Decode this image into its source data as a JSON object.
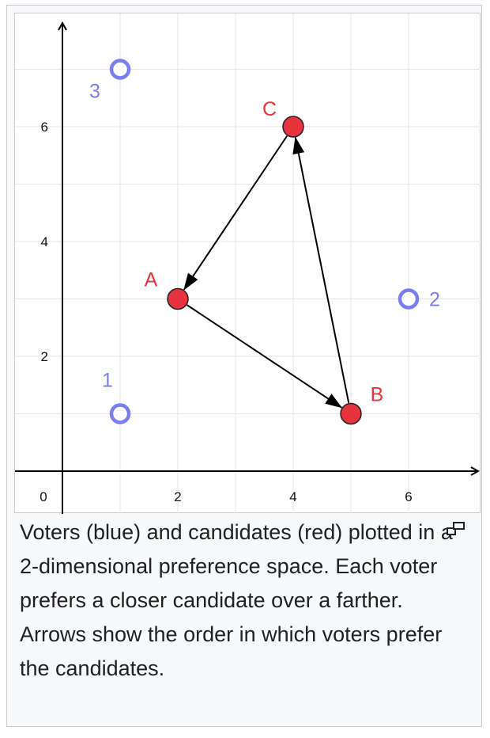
{
  "chart_data": {
    "type": "scatter",
    "title": "",
    "xlabel": "",
    "ylabel": "",
    "xlim": [
      -0.5,
      7.3
    ],
    "ylim": [
      -0.7,
      7.9
    ],
    "grid": true,
    "x_ticks": [
      0,
      2,
      4,
      6
    ],
    "y_ticks": [
      2,
      4,
      6
    ],
    "origin_label": "0",
    "voter_color": "#7a7ef2",
    "candidate_color": "#e8333e",
    "candidate_label_color": "#e8333e",
    "voter_label_color": "#7a7ef2",
    "voters": [
      {
        "label": "1",
        "x": 1,
        "y": 1,
        "label_position": "above"
      },
      {
        "label": "2",
        "x": 6,
        "y": 3,
        "label_position": "right"
      },
      {
        "label": "3",
        "x": 1,
        "y": 7,
        "label_position": "left"
      }
    ],
    "candidates": [
      {
        "label": "A",
        "x": 2,
        "y": 3,
        "label_position": "top-left"
      },
      {
        "label": "B",
        "x": 5,
        "y": 1,
        "label_position": "top-right"
      },
      {
        "label": "C",
        "x": 4,
        "y": 6,
        "label_position": "top-left"
      }
    ],
    "arrows": [
      {
        "from": "A",
        "to": "B"
      },
      {
        "from": "B",
        "to": "C"
      },
      {
        "from": "C",
        "to": "A"
      }
    ]
  },
  "caption": {
    "text": "Voters (blue) and candidates (red) plotted in a 2-dimensional preference space. Each voter prefers a closer candidate over a farther. Arrows show the order in which voters prefer the candidates."
  },
  "icons": {
    "magnify": "magnify-icon"
  }
}
